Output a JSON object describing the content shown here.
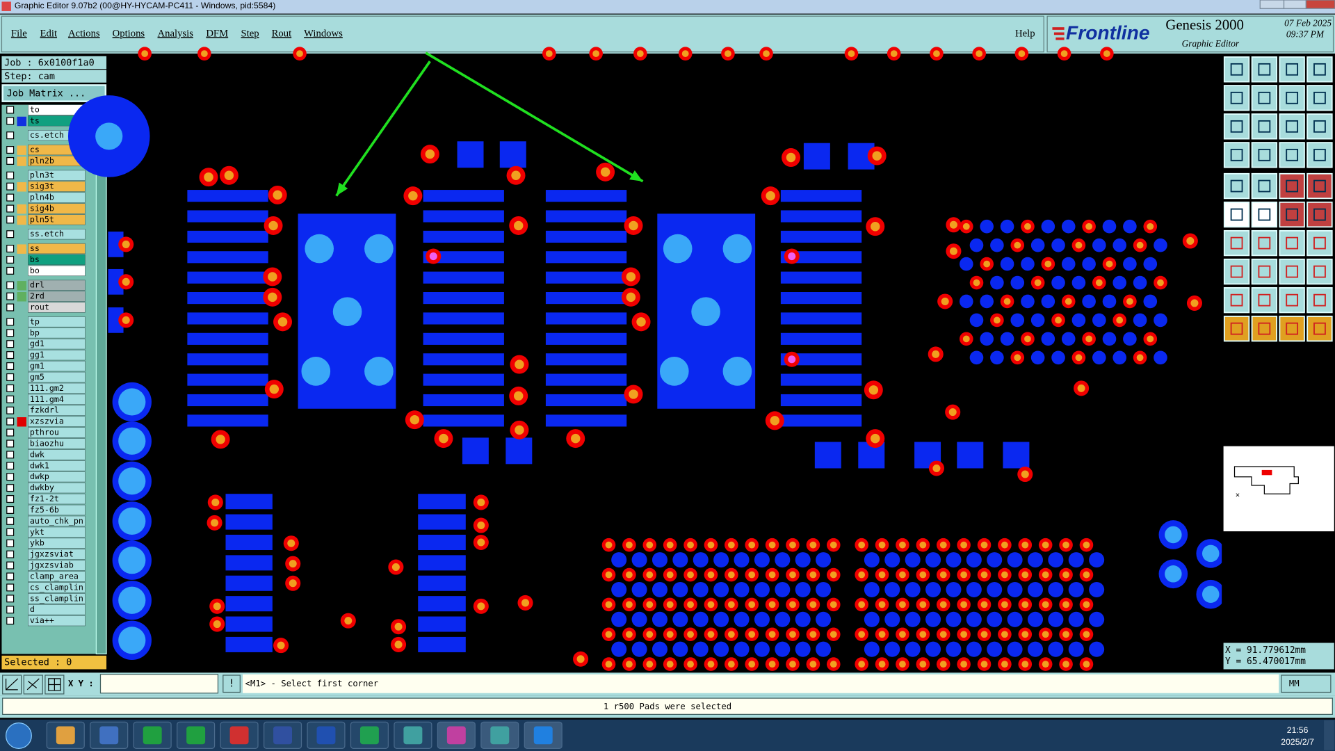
{
  "window_title": "Graphic Editor 9.07b2 (00@HY-HYCAM-PC411 - Windows, pid:5584)",
  "menu": [
    "File",
    "Edit",
    "Actions",
    "Options",
    "Analysis",
    "DFM",
    "Step",
    "Rout",
    "Windows"
  ],
  "help": "Help",
  "brand": {
    "logo": "Frontline",
    "product": "Genesis 2000",
    "subtitle": "Graphic Editor",
    "date": "07 Feb 2025",
    "time": "09:37 PM"
  },
  "job": {
    "job": "Job  : 6x0100f1a0",
    "step": "Step: cam",
    "matrix": "Job Matrix ..."
  },
  "layers": [
    {
      "name": "to",
      "color": "#ffffff"
    },
    {
      "name": "ts",
      "color": "#10a080"
    },
    {
      "name": "cs.etch",
      "color": "#a8e0e0"
    },
    {
      "name": "cs",
      "color": "#f0b848"
    },
    {
      "name": "pln2b",
      "color": "#f0b848"
    },
    {
      "name": "pln3t",
      "color": "#a8e0e0"
    },
    {
      "name": "sig3t",
      "color": "#f0b848"
    },
    {
      "name": "pln4b",
      "color": "#a8e0e0"
    },
    {
      "name": "sig4b",
      "color": "#f0b848"
    },
    {
      "name": "pln5t",
      "color": "#f0b848"
    },
    {
      "name": "ss.etch",
      "color": "#a8e0e0"
    },
    {
      "name": "ss",
      "color": "#f0b848"
    },
    {
      "name": "bs",
      "color": "#10a080"
    },
    {
      "name": "bo",
      "color": "#ffffff"
    },
    {
      "name": "drl",
      "color": "#a0b0b0"
    },
    {
      "name": "2rd",
      "color": "#a0b0b0"
    },
    {
      "name": "rout",
      "color": "#d8d8d8"
    },
    {
      "name": "tp",
      "color": "#a8e0e0"
    },
    {
      "name": "bp",
      "color": "#a8e0e0"
    },
    {
      "name": "gd1",
      "color": "#a8e0e0"
    },
    {
      "name": "gg1",
      "color": "#a8e0e0"
    },
    {
      "name": "gm1",
      "color": "#a8e0e0"
    },
    {
      "name": "gm5",
      "color": "#a8e0e0"
    },
    {
      "name": "111.gm2",
      "color": "#a8e0e0"
    },
    {
      "name": "111.gm4",
      "color": "#a8e0e0"
    },
    {
      "name": "fzkdrl",
      "color": "#a8e0e0"
    },
    {
      "name": "xzszvia",
      "color": "#a8e0e0"
    },
    {
      "name": "pthrou",
      "color": "#a8e0e0"
    },
    {
      "name": "biaozhu",
      "color": "#a8e0e0"
    },
    {
      "name": "dwk",
      "color": "#a8e0e0"
    },
    {
      "name": "dwk1",
      "color": "#a8e0e0"
    },
    {
      "name": "dwkp",
      "color": "#a8e0e0"
    },
    {
      "name": "dwkby",
      "color": "#a8e0e0"
    },
    {
      "name": "fz1-2t",
      "color": "#a8e0e0"
    },
    {
      "name": "fz5-6b",
      "color": "#a8e0e0"
    },
    {
      "name": "auto_chk_pn",
      "color": "#a8e0e0"
    },
    {
      "name": "ykt",
      "color": "#a8e0e0"
    },
    {
      "name": "ykb",
      "color": "#a8e0e0"
    },
    {
      "name": "jgxzsviat",
      "color": "#a8e0e0"
    },
    {
      "name": "jgxzsviab",
      "color": "#a8e0e0"
    },
    {
      "name": "clamp_area",
      "color": "#a8e0e0"
    },
    {
      "name": "cs_clamplin",
      "color": "#a8e0e0"
    },
    {
      "name": "ss_clamplin",
      "color": "#a8e0e0"
    },
    {
      "name": "d",
      "color": "#a8e0e0"
    },
    {
      "name": "via++",
      "color": "#a8e0e0"
    }
  ],
  "selected": "Selected : 0",
  "xy_label": "X Y :",
  "prompt": "<M1> - Select first corner",
  "status": "1 r500 Pads were selected",
  "units": "MM",
  "coords": {
    "x": "X = 91.779612mm",
    "y": "Y = 65.470017mm"
  },
  "clock": {
    "time": "21:56",
    "date": "2025/2/7"
  }
}
